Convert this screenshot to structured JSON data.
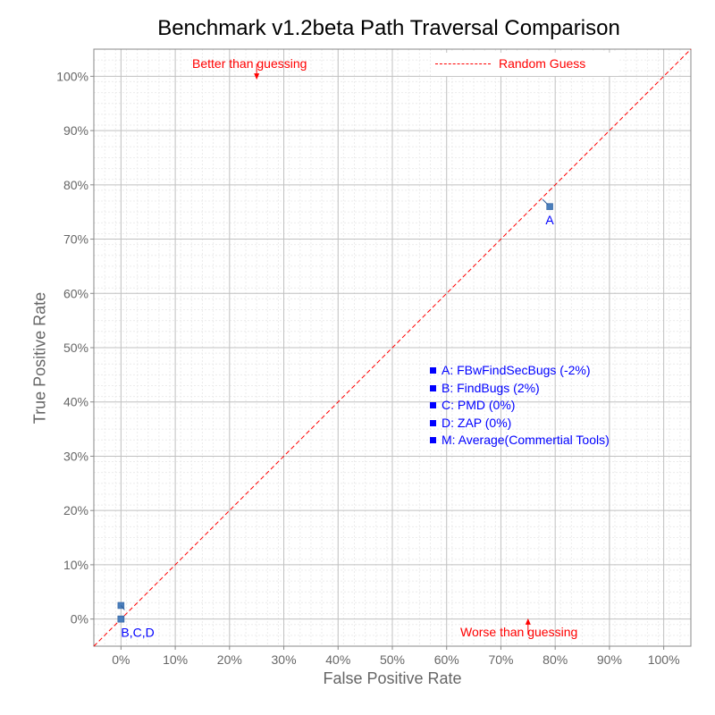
{
  "chart_data": {
    "type": "scatter",
    "title": "Benchmark v1.2beta Path Traversal Comparison",
    "xlabel": "False Positive Rate",
    "ylabel": "True Positive Rate",
    "xlim": [
      -5,
      105
    ],
    "ylim": [
      -5,
      105
    ],
    "x_ticks": [
      0,
      10,
      20,
      30,
      40,
      50,
      60,
      70,
      80,
      90,
      100
    ],
    "x_tick_labels": [
      "0%",
      "10%",
      "20%",
      "30%",
      "40%",
      "50%",
      "60%",
      "70%",
      "80%",
      "90%",
      "100%"
    ],
    "y_ticks": [
      0,
      10,
      20,
      30,
      40,
      50,
      60,
      70,
      80,
      90,
      100
    ],
    "y_tick_labels": [
      "0%",
      "10%",
      "20%",
      "30%",
      "40%",
      "50%",
      "60%",
      "70%",
      "80%",
      "90%",
      "100%"
    ],
    "grid": true,
    "points": [
      {
        "label": "A",
        "x": 79,
        "y": 76
      },
      {
        "label": "B",
        "x": 0,
        "y": 2.5
      },
      {
        "label": "C",
        "x": 0,
        "y": 0
      },
      {
        "label": "D",
        "x": 0,
        "y": 0
      }
    ],
    "point_labels": [
      {
        "text": "A",
        "x": 79,
        "y": 76
      },
      {
        "text": "B,C,D",
        "x": 0,
        "y": 0
      }
    ],
    "reference_line": {
      "name": "Random Guess",
      "from": [
        -5,
        -5
      ],
      "to": [
        105,
        105
      ],
      "color": "#ff0000",
      "style": "dashed"
    },
    "annotations": [
      {
        "text": "Better than guessing",
        "x": 25,
        "y": 103,
        "arrow": "down"
      },
      {
        "text": "Worse than guessing",
        "x": 75,
        "y": -3,
        "arrow": "up"
      }
    ],
    "tool_list": [
      "A: FBwFindSecBugs (-2%)",
      "B: FindBugs (2%)",
      "C: PMD (0%)",
      "D: ZAP (0%)",
      "M: Average(Commertial Tools)"
    ],
    "legend": {
      "label": "Random Guess",
      "placement": "top-right"
    },
    "colors": {
      "reference": "#ff0000",
      "points": "#4a7ebb",
      "labels": "#0000ff",
      "grid_major": "#c0c0c0",
      "grid_minor": "#ececec"
    }
  }
}
